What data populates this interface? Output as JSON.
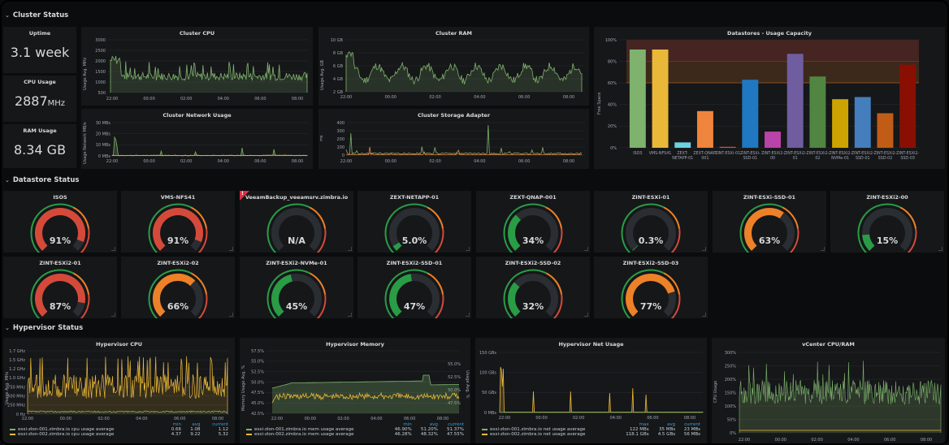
{
  "rows": {
    "cluster": "Cluster Status",
    "datastore": "Datastore Status",
    "hypervisor": "Hypervisor Status"
  },
  "stats": {
    "uptime": {
      "title": "Uptime",
      "value": "3.1 week"
    },
    "cpu": {
      "title": "CPU Usage",
      "value": "2887",
      "unit": "MHz"
    },
    "ram": {
      "title": "RAM Usage",
      "value": "8.34 GB"
    }
  },
  "colors": {
    "green": "#7eb26d",
    "yellow": "#eab839",
    "red": "#d44a3a",
    "orange": "#e0752d",
    "gauge_green": "#299c46",
    "gauge_orange": "#ed8128",
    "gauge_red": "#d44a3a"
  },
  "cluster_charts": {
    "cpu": {
      "title": "Cluster CPU",
      "ylabel": "Usage Avg. MHz",
      "yticks": [
        "3000",
        "2500",
        "2000",
        "1500",
        "1000",
        "500"
      ],
      "xticks": [
        "22:00",
        "00:00",
        "02:00",
        "04:00",
        "06:00",
        "08:00"
      ]
    },
    "ram": {
      "title": "Cluster RAM",
      "ylabel": "Usage Avg. GB",
      "yticks": [
        "10 GB",
        "8 GB",
        "6 GB",
        "4 GB",
        "2 GB"
      ],
      "xticks": [
        "22:00",
        "00:00",
        "02:00",
        "04:00",
        "06:00",
        "08:00"
      ]
    },
    "net": {
      "title": "Cluster Network Usage",
      "ylabel": "Usage Network MB/s",
      "yticks": [
        "30 MBs",
        "20 MBs",
        "10 MBs",
        "0 MBs"
      ],
      "xticks": [
        "22:00",
        "00:00",
        "02:00",
        "04:00",
        "06:00",
        "08:00"
      ]
    },
    "storage": {
      "title": "Cluster Storage Adapter",
      "ylabel": "ms",
      "yticks": [
        "400",
        "300",
        "200",
        "100",
        "0"
      ],
      "xticks": [
        "22:00",
        "00:00",
        "02:00",
        "04:00",
        "06:00",
        "08:00"
      ]
    }
  },
  "chart_data": [
    {
      "type": "bar",
      "title": "Datastores - Usage Capacity",
      "ylabel": "Free Space",
      "ylim": [
        0,
        100
      ],
      "yticks": [
        "100%",
        "80%",
        "60%",
        "40%",
        "20%",
        "0%"
      ],
      "categories": [
        "ISOS",
        "VMS-NFS41",
        "ZEXT-NETAPP-01",
        "ZEXT-QNAP-001",
        "ZINT-ESXi-01",
        "ZINT-ESXi-SSD-01",
        "ZINT-ESXi2-00",
        "ZINT-ESXi2-01",
        "ZINT-ESXi2-02",
        "ZINT-ESXi2-NVMe-01",
        "ZINT-ESXi2-SSD-01",
        "ZINT-ESXi2-SSD-02",
        "ZINT-ESXi2-SSD-03"
      ],
      "category_labels": [
        [
          "ISOS"
        ],
        [
          "VMS-NFS41"
        ],
        [
          "ZEXT-",
          "NETAPP-01"
        ],
        [
          "ZEXT-QNAP-",
          "001"
        ],
        [
          "ZINT-ESXi-01"
        ],
        [
          "ZINT-ESXi-",
          "SSD-01"
        ],
        [
          "ZINT-ESXi2-",
          "00"
        ],
        [
          "ZINT-ESXi2-",
          "01"
        ],
        [
          "ZINT-ESXi2-",
          "02"
        ],
        [
          "ZINT-ESXi2-",
          "NVMe-01"
        ],
        [
          "ZINT-ESXi2-",
          "SSD-01"
        ],
        [
          "ZINT-ESXi2-",
          "SSD-02"
        ],
        [
          "ZINT-ESXi2-",
          "SSD-03"
        ]
      ],
      "values": [
        91,
        91,
        5,
        34,
        0.3,
        63,
        15,
        87,
        66,
        45,
        47,
        32,
        77
      ],
      "colors": [
        "#7eb26d",
        "#eab839",
        "#6ed0e0",
        "#ef843c",
        "#e24d42",
        "#1f78c1",
        "#ba43a9",
        "#705da0",
        "#508642",
        "#cca300",
        "#447ebc",
        "#c15c17",
        "#890f02"
      ],
      "thresholds": [
        60,
        80
      ]
    },
    {
      "type": "line",
      "title": "Hypervisor CPU",
      "ylabel": "Usage Avg. MHz",
      "yticks": [
        "1.7 GHz",
        "1.5 GHz",
        "1.2 GHz",
        "1.0 GHz",
        "750 MHz",
        "500 MHz",
        "250 MHz",
        "0 Hz"
      ],
      "xticks": [
        "22:00",
        "00:00",
        "02:00",
        "04:00",
        "06:00",
        "08:00"
      ],
      "series": [
        {
          "name": "esxi-zlon-001.zimbra.io cpu usage average",
          "min": "0.66",
          "avg": "1.08",
          "current": "1.12"
        },
        {
          "name": "esxi-zlon-002.zimbra.io cpu usage average",
          "min": "4.37",
          "avg": "9.22",
          "current": "5.32"
        }
      ],
      "legend_headers": [
        "min",
        "avg",
        "current"
      ]
    },
    {
      "type": "line",
      "title": "Hypervisor Memory",
      "ylabel": "Memory Usage Avg. %",
      "ylabel_right": "Usage Avg. %",
      "yticks": [
        "57.5%",
        "55.0%",
        "52.5%",
        "50.0%",
        "47.5%",
        "45.0%",
        "42.5%"
      ],
      "yticks_right": [
        "55.0%",
        "52.5%",
        "50.0%",
        "47.5%"
      ],
      "xticks": [
        "22:00",
        "00:00",
        "02:00",
        "04:00",
        "06:00",
        "08:00"
      ],
      "series": [
        {
          "name": "esxi-zlon-001.zimbra.io mem usage average",
          "min": "46.90%",
          "avg": "51.20%",
          "current": "51.37%"
        },
        {
          "name": "esxi-zlon-002.zimbra.io mem usage average",
          "min": "46.28%",
          "avg": "48.32%",
          "current": "47.55%"
        }
      ],
      "legend_headers": [
        "min",
        "avg",
        "current"
      ]
    },
    {
      "type": "line",
      "title": "Hypervisor Net Usage",
      "yticks": [
        "150 GBs",
        "100 GBs",
        "50 GBs",
        "0 MBs"
      ],
      "xticks": [
        "22:00",
        "00:00",
        "02:00",
        "04:00",
        "06:00",
        "08:00"
      ],
      "series": [
        {
          "name": "esxi-zlon-001.zimbra.io net usage average",
          "max": "122 MBs",
          "avg": "35 MBs",
          "current": "23 MBs"
        },
        {
          "name": "esxi-zlon-002.zimbra.io net usage average",
          "max": "118.1 GBs",
          "avg": "4.5 GBs",
          "current": "56 MBs"
        }
      ],
      "legend_headers": [
        "max",
        "avg",
        "current"
      ]
    },
    {
      "type": "line",
      "title": "vCenter CPU/RAM",
      "ylabel": "CPU Usage",
      "yticks": [
        "300%",
        "250%",
        "200%",
        "150%",
        "100%",
        "50%",
        "0%"
      ],
      "xticks": [
        "22:00",
        "00:00",
        "02:00",
        "04:00",
        "06:00",
        "08:00"
      ]
    }
  ],
  "gauges": [
    {
      "name": "ISOS",
      "value": 91,
      "label": "91%"
    },
    {
      "name": "VMS-NFS41",
      "value": 91,
      "label": "91%"
    },
    {
      "name": "VeeamBackup_veeamsrv.zimbra.io",
      "value": null,
      "label": "N/A",
      "alert": true
    },
    {
      "name": "ZEXT-NETAPP-01",
      "value": 5,
      "label": "5.0%"
    },
    {
      "name": "ZEXT-QNAP-001",
      "value": 34,
      "label": "34%"
    },
    {
      "name": "ZINT-ESXi-01",
      "value": 0.3,
      "label": "0.3%"
    },
    {
      "name": "ZINT-ESXi-SSD-01",
      "value": 63,
      "label": "63%"
    },
    {
      "name": "ZINT-ESXi2-00",
      "value": 15,
      "label": "15%"
    },
    {
      "name": "ZINT-ESXi2-01",
      "value": 87,
      "label": "87%"
    },
    {
      "name": "ZINT-ESXi2-02",
      "value": 66,
      "label": "66%"
    },
    {
      "name": "ZINT-ESXi2-NVMe-01",
      "value": 45,
      "label": "45%"
    },
    {
      "name": "ZINT-ESXi2-SSD-01",
      "value": 47,
      "label": "47%"
    },
    {
      "name": "ZINT-ESXi2-SSD-02",
      "value": 32,
      "label": "32%"
    },
    {
      "name": "ZINT-ESXi2-SSD-03",
      "value": 77,
      "label": "77%"
    }
  ]
}
